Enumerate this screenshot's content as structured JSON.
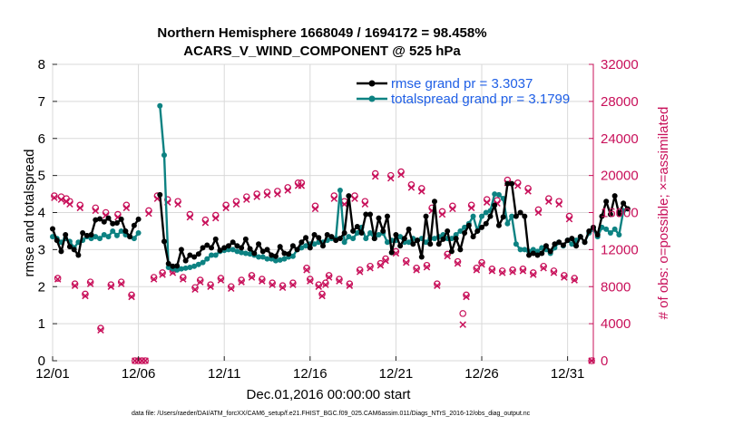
{
  "chart_data": {
    "type": "line",
    "title": "Northern Hemisphere 1668049 / 1694172 = 98.458%",
    "subtitle": "ACARS_V_WIND_COMPONENT @ 525 hPa",
    "xlabel": "Dec.01,2016 00:00:00 start",
    "ylabel": "rmse and totalspread",
    "ylabel_right": "# of obs: o=possible; ×=assimilated",
    "footer": "data file: /Users/raeder/DAI/ATM_forcXX/CAM6_setup/f.e21.FHIST_BGC.f09_025.CAM6assim.011/Diags_NTrS_2016-12/obs_diag_output.nc",
    "xlim": [
      0,
      31.5
    ],
    "ylim": [
      0,
      8
    ],
    "ylim_right": [
      0,
      32000
    ],
    "x_ticks": [
      0,
      5,
      10,
      15,
      20,
      25,
      30
    ],
    "x_tick_labels": [
      "12/01",
      "12/06",
      "12/11",
      "12/16",
      "12/21",
      "12/26",
      "12/31"
    ],
    "y_ticks": [
      "0",
      "1",
      "2",
      "3",
      "4",
      "5",
      "6",
      "7",
      "8"
    ],
    "y_right_ticks": [
      "0",
      "4000",
      "8000",
      "12000",
      "16000",
      "20000",
      "24000",
      "28000",
      "32000"
    ],
    "legend_position": "top-right",
    "colors": {
      "rmse": "#000000",
      "spread": "#0d8282",
      "obs": "#c8105a",
      "legend_text": "#1f5fe6"
    },
    "series": [
      {
        "name": "rmse grand pr = 3.3037",
        "values": [
          3.56,
          3.25,
          2.95,
          3.4,
          3.08,
          3.0,
          2.85,
          3.45,
          3.38,
          3.4,
          3.8,
          3.83,
          3.75,
          3.85,
          3.7,
          3.72,
          3.82,
          3.5,
          3.35,
          3.65,
          3.82,
          null,
          null,
          null,
          null,
          4.48,
          3.22,
          2.62,
          2.55,
          2.56,
          3.0,
          2.7,
          2.85,
          2.8,
          2.88,
          3.05,
          3.12,
          3.05,
          3.28,
          2.98,
          3.05,
          3.1,
          3.2,
          3.1,
          3.05,
          3.28,
          3.02,
          2.9,
          3.15,
          2.95,
          3.0,
          2.85,
          2.82,
          3.08,
          2.9,
          2.88,
          3.1,
          3.0,
          3.2,
          3.32,
          3.05,
          3.4,
          3.32,
          3.1,
          3.4,
          3.35,
          3.25,
          3.3,
          3.45,
          4.45,
          3.5,
          3.62,
          3.45,
          3.95,
          3.95,
          3.3,
          3.85,
          3.5,
          3.9,
          2.92,
          3.4,
          3.1,
          3.3,
          3.55,
          3.15,
          3.25,
          2.8,
          3.9,
          3.15,
          4.3,
          3.15,
          3.28,
          3.5,
          2.95,
          3.3,
          3.0,
          3.45,
          3.65,
          3.35,
          3.5,
          3.6,
          3.7,
          3.9,
          4.2,
          3.65,
          3.88,
          4.78,
          4.78,
          3.9,
          4.0,
          3.9,
          2.85,
          2.9,
          2.85,
          2.9,
          3.1,
          2.95,
          3.15,
          3.2,
          3.12,
          3.25,
          3.3,
          3.1,
          3.35,
          3.2,
          3.5,
          3.6,
          3.4,
          3.9,
          4.3,
          3.95,
          4.45,
          3.95,
          4.25,
          4.1
        ],
        "x_step": 0.25
      },
      {
        "name": "totalspread grand pr = 3.1799",
        "values": [
          3.35,
          3.3,
          3.2,
          3.3,
          3.22,
          3.05,
          3.2,
          3.25,
          3.35,
          3.3,
          3.35,
          3.3,
          3.4,
          3.35,
          3.5,
          3.38,
          3.5,
          3.4,
          3.35,
          3.3,
          3.45,
          null,
          null,
          null,
          null,
          6.88,
          5.55,
          2.52,
          2.48,
          2.45,
          2.48,
          2.5,
          2.52,
          2.55,
          2.6,
          2.65,
          2.75,
          2.85,
          2.85,
          2.95,
          2.98,
          3.0,
          3.0,
          2.95,
          2.92,
          2.9,
          2.88,
          2.85,
          2.8,
          2.8,
          2.75,
          2.75,
          2.7,
          2.72,
          2.75,
          2.8,
          2.82,
          3.0,
          3.05,
          3.1,
          3.15,
          3.15,
          3.2,
          3.2,
          3.25,
          3.3,
          3.3,
          4.6,
          3.2,
          3.35,
          3.3,
          3.45,
          3.6,
          3.3,
          3.45,
          3.3,
          3.4,
          3.45,
          3.2,
          3.25,
          3.25,
          3.35,
          3.2,
          3.2,
          3.3,
          3.25,
          3.3,
          3.2,
          3.3,
          3.3,
          3.35,
          3.4,
          3.3,
          3.3,
          3.4,
          3.5,
          3.6,
          3.7,
          3.9,
          3.5,
          3.9,
          4.0,
          4.05,
          4.5,
          4.48,
          4.38,
          3.7,
          3.9,
          3.15,
          3.0,
          3.0,
          2.95,
          3.0,
          2.95,
          3.05,
          3.0,
          2.9,
          3.05,
          3.2,
          3.1,
          3.25,
          3.15,
          3.25,
          3.35,
          3.2,
          3.45,
          3.55,
          3.35,
          3.6,
          3.55,
          3.45,
          3.55,
          3.4,
          4.05
        ],
        "x_step": 0.25
      }
    ],
    "obs_possible": [
      17800,
      8900,
      17700,
      17500,
      17200,
      8300,
      16800,
      7200,
      8500,
      16500,
      3500,
      16000,
      8200,
      15800,
      8500,
      16800,
      7100,
      0,
      0,
      0,
      0,
      16200,
      9000,
      17800,
      9500,
      17400,
      9700,
      17200,
      9000,
      15800,
      7900,
      8700,
      15200,
      8200,
      15700,
      8900,
      16800,
      8000,
      17200,
      8700,
      17700,
      9200,
      18000,
      8800,
      18200,
      8400,
      18300,
      8100,
      18700,
      8400,
      19200,
      19200,
      10000,
      8800,
      16700,
      8200,
      7200,
      8400,
      9200,
      17800,
      8800,
      17200,
      8300,
      17800,
      9800,
      17200,
      10200,
      20200,
      10500,
      11000,
      20000,
      11800,
      20400,
      10800,
      19000,
      10000,
      18600,
      10300,
      16500,
      8300,
      16100,
      11500,
      16700,
      10700,
      5100,
      7100,
      16800,
      10000,
      10600,
      17400,
      9900,
      17300,
      9700,
      19500,
      9800,
      19200,
      9900,
      18600,
      9500,
      16300,
      10200,
      17500,
      9700,
      17200,
      9200,
      15600,
      8900,
      0
    ],
    "obs_assimilated": [
      17600,
      8800,
      17400,
      17200,
      16900,
      8100,
      16500,
      7000,
      8300,
      16200,
      3300,
      15700,
      8000,
      15500,
      8300,
      16500,
      6900,
      0,
      0,
      0,
      0,
      15900,
      8800,
      17500,
      9300,
      17100,
      9500,
      16900,
      8800,
      15500,
      7700,
      8500,
      14900,
      8000,
      15400,
      8700,
      16500,
      7800,
      16900,
      8500,
      17400,
      9000,
      17700,
      8600,
      17900,
      8200,
      18000,
      7900,
      18400,
      8200,
      18900,
      18900,
      9800,
      8600,
      16400,
      8000,
      7000,
      8200,
      9000,
      17500,
      8600,
      16900,
      8100,
      17500,
      9600,
      16900,
      10000,
      19900,
      10300,
      10800,
      19700,
      11600,
      20100,
      10600,
      18700,
      9800,
      18300,
      10100,
      16200,
      8100,
      15800,
      11300,
      16400,
      10500,
      3900,
      6900,
      16500,
      9800,
      10400,
      17100,
      9700,
      17000,
      9500,
      19200,
      9600,
      18900,
      9700,
      18300,
      9300,
      16000,
      10000,
      17200,
      9500,
      16900,
      9000,
      15300,
      8700,
      0
    ],
    "obs_x": [
      0.1,
      0.3,
      0.5,
      0.8,
      1.0,
      1.3,
      1.6,
      1.9,
      2.2,
      2.5,
      2.8,
      3.1,
      3.4,
      3.8,
      4.0,
      4.3,
      4.6,
      4.8,
      5.0,
      5.2,
      5.4,
      5.6,
      5.9,
      6.1,
      6.4,
      6.7,
      7.0,
      7.3,
      7.6,
      8.0,
      8.3,
      8.6,
      8.9,
      9.2,
      9.5,
      9.8,
      10.1,
      10.4,
      10.7,
      11.0,
      11.3,
      11.6,
      11.9,
      12.2,
      12.5,
      12.8,
      13.1,
      13.4,
      13.7,
      14.0,
      14.3,
      14.5,
      14.8,
      15.0,
      15.3,
      15.5,
      15.7,
      15.9,
      16.1,
      16.4,
      16.7,
      17.0,
      17.3,
      17.6,
      17.9,
      18.2,
      18.5,
      18.8,
      19.1,
      19.4,
      19.7,
      20.0,
      20.3,
      20.6,
      20.9,
      21.2,
      21.5,
      21.8,
      22.1,
      22.4,
      22.7,
      23.0,
      23.3,
      23.6,
      23.9,
      24.1,
      24.4,
      24.7,
      25.0,
      25.3,
      25.6,
      25.9,
      26.2,
      26.5,
      26.8,
      27.1,
      27.4,
      27.7,
      28.0,
      28.3,
      28.6,
      28.9,
      29.2,
      29.5,
      29.8,
      30.1,
      30.4,
      31.4
    ]
  }
}
